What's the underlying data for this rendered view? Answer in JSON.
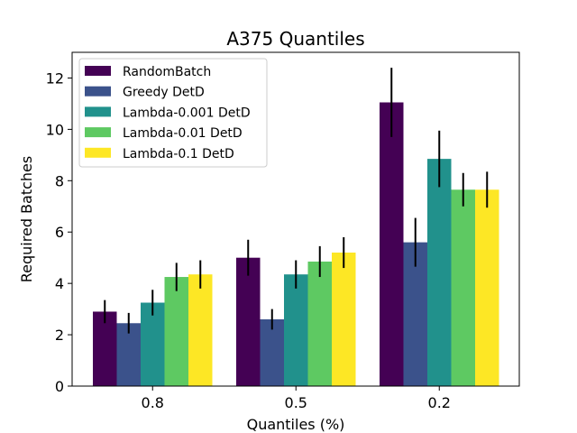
{
  "chart_data": {
    "type": "bar",
    "title": "A375 Quantiles",
    "xlabel": "Quantiles (%)",
    "ylabel": "Required Batches",
    "categories": [
      "0.8",
      "0.5",
      "0.2"
    ],
    "ylim": [
      0,
      13
    ],
    "yticks": [
      0,
      2,
      4,
      6,
      8,
      10,
      12
    ],
    "grid": false,
    "legend_position": "top-left",
    "series": [
      {
        "name": "RandomBatch",
        "color": "#440154",
        "values": [
          2.9,
          5.0,
          11.05
        ],
        "errors": [
          0.45,
          0.7,
          1.35
        ]
      },
      {
        "name": "Greedy DetD",
        "color": "#3b528b",
        "values": [
          2.45,
          2.6,
          5.6
        ],
        "errors": [
          0.4,
          0.4,
          0.95
        ]
      },
      {
        "name": "Lambda-0.001 DetD",
        "color": "#21918c",
        "values": [
          3.25,
          4.35,
          8.85
        ],
        "errors": [
          0.5,
          0.55,
          1.1
        ]
      },
      {
        "name": "Lambda-0.01 DetD",
        "color": "#5ec962",
        "values": [
          4.25,
          4.85,
          7.65
        ],
        "errors": [
          0.55,
          0.6,
          0.65
        ]
      },
      {
        "name": "Lambda-0.1 DetD",
        "color": "#fde725",
        "values": [
          4.35,
          5.2,
          7.65
        ],
        "errors": [
          0.55,
          0.6,
          0.7
        ]
      }
    ]
  }
}
